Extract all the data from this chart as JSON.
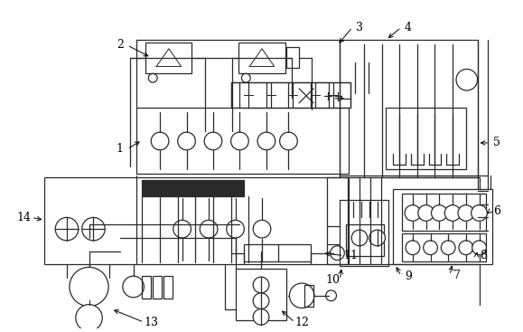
{
  "bg_color": "#ffffff",
  "line_color": "#2a2a2a",
  "lw": 0.9,
  "fig_width": 5.79,
  "fig_height": 3.67,
  "dpi": 100
}
